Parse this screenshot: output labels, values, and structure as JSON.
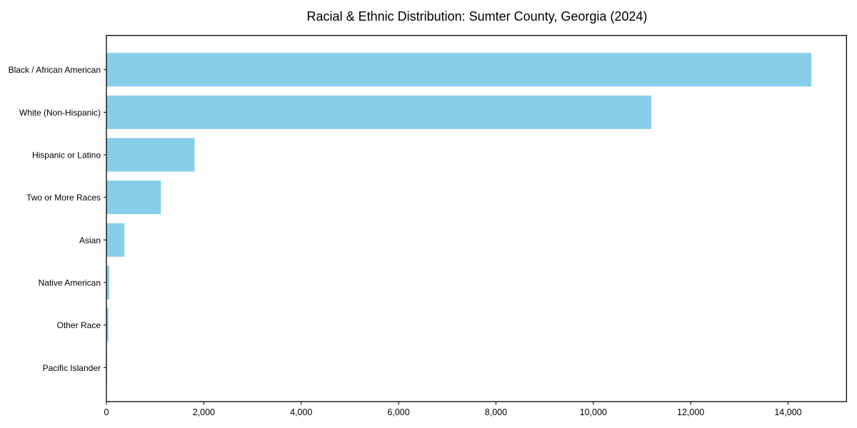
{
  "chart_data": {
    "type": "bar",
    "orientation": "horizontal",
    "title": "Racial & Ethnic Distribution: Sumter County, Georgia (2024)",
    "xlabel": "",
    "ylabel": "",
    "categories": [
      "Black / African American",
      "White (Non-Hispanic)",
      "Hispanic or Latino",
      "Two or More Races",
      "Asian",
      "Native American",
      "Other Race",
      "Pacific Islander"
    ],
    "values": [
      14480,
      11190,
      1810,
      1120,
      370,
      60,
      40,
      10
    ],
    "xlim": [
      0,
      15200
    ],
    "xticks": {
      "values": [
        0,
        2000,
        4000,
        6000,
        8000,
        10000,
        12000,
        14000
      ],
      "labels": [
        "0",
        "2,000",
        "4,000",
        "6,000",
        "8,000",
        "10,000",
        "12,000",
        "14,000"
      ]
    },
    "bar_color": "#87CEEB",
    "background_color": "#FFFFFF",
    "spine_color": "#000000",
    "grid": false,
    "legend": null
  }
}
